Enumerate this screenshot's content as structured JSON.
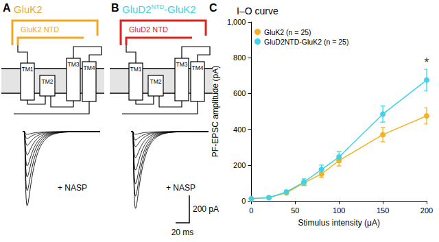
{
  "panels": [
    {
      "label": "A",
      "title": [
        {
          "text": "GluK2"
        }
      ],
      "title_color": "#f2a81d",
      "ntd": {
        "text": [
          {
            "text": "GluK2 NTD"
          }
        ],
        "color": "#f2a81d"
      },
      "tm_labels": [
        "TM1",
        "TM2",
        "TM3",
        "TM4"
      ],
      "condition": "+ NASP",
      "trace_peaks": [
        540,
        430,
        330,
        250,
        170,
        100,
        50,
        20
      ]
    },
    {
      "label": "B",
      "title": [
        {
          "text": "GluD2"
        },
        {
          "text": "NTD",
          "sup": true
        },
        {
          "text": "-GluK2"
        }
      ],
      "title_color": "#3dd3e8",
      "ntd": {
        "text": [
          {
            "text": "GluD2 NTD"
          }
        ],
        "color": "#e3211c"
      },
      "tm_labels": [
        "TM1",
        "TM2",
        "TM3",
        "TM4"
      ],
      "condition": "+ NASP",
      "trace_peaks": [
        560,
        470,
        380,
        280,
        190,
        110,
        60,
        20
      ]
    }
  ],
  "scale_bar": {
    "amplitude": 200,
    "amplitude_label": "200 pA",
    "time": 20,
    "time_label": "20 ms"
  },
  "chart_panel_label": "C",
  "chart_data": {
    "type": "line",
    "title": "I–O curve",
    "x_label": "Stimulus intensity (μA)",
    "y_label": "PF-EPSC amplitude (pA)",
    "x": [
      0,
      20,
      40,
      60,
      80,
      100,
      150,
      200
    ],
    "series": [
      {
        "name": "GluK2 (n = 25)",
        "color": "#f5b21f",
        "marker": "circle",
        "values": [
          12,
          18,
          45,
          100,
          150,
          225,
          370,
          475
        ],
        "errors": [
          2,
          4,
          8,
          15,
          20,
          30,
          40,
          45
        ]
      },
      {
        "name": "GluD2NTD-GluK2 (n = 25)",
        "color": "#3dd3e8",
        "marker": "circle",
        "values": [
          12,
          18,
          50,
          105,
          175,
          245,
          485,
          675
        ],
        "errors": [
          2,
          4,
          8,
          18,
          25,
          30,
          45,
          60
        ]
      }
    ],
    "xlim": [
      0,
      200
    ],
    "xticks": [
      0,
      50,
      100,
      150,
      200
    ],
    "ylim": [
      0,
      1000
    ],
    "yticks": [
      0,
      200,
      400,
      600,
      800,
      1000
    ],
    "grid": false,
    "legend": "upper left",
    "annotations": [
      {
        "text": "*",
        "x": 200,
        "y": 775
      }
    ]
  }
}
